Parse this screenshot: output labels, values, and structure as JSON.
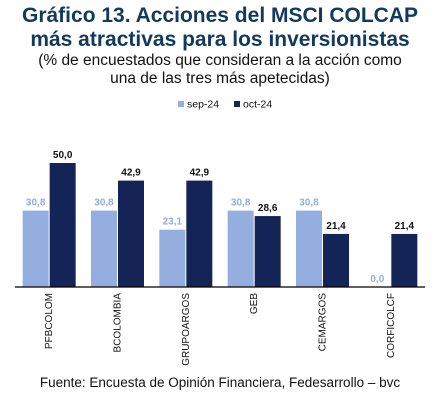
{
  "title_line1": "Gráfico 13. Acciones del MSCI COLCAP",
  "title_line2": "más atractivas para los inversionistas",
  "subtitle_line1": "(% de encuestados que consideran a la acción como",
  "subtitle_line2": "una de las tres más apetecidas)",
  "source": "Fuente: Encuesta de Opinión Financiera, Fedesarrollo – bvc",
  "colors": {
    "sep-24": "#94aedf",
    "oct-24": "#142456",
    "axis": "#000000",
    "title": "#123a5e"
  },
  "chart_data": {
    "type": "bar",
    "categories": [
      "PFBCOLOM",
      "BCOLOMBIA",
      "GRUPOARGOS",
      "GEB",
      "CEMARGOS",
      "CORFICOLCF"
    ],
    "series": [
      {
        "name": "sep-24",
        "values": [
          30.8,
          30.8,
          23.1,
          30.8,
          30.8,
          0.0
        ],
        "labels": [
          "30,8",
          "30,8",
          "23,1",
          "30,8",
          "30,8",
          "0,0"
        ]
      },
      {
        "name": "oct-24",
        "values": [
          50.0,
          42.9,
          42.9,
          28.6,
          21.4,
          21.4
        ],
        "labels": [
          "50,0",
          "42,9",
          "42,9",
          "28,6",
          "21,4",
          "21,4"
        ]
      }
    ],
    "legend_position": "top",
    "ylim": [
      0,
      50
    ],
    "grid": false
  }
}
